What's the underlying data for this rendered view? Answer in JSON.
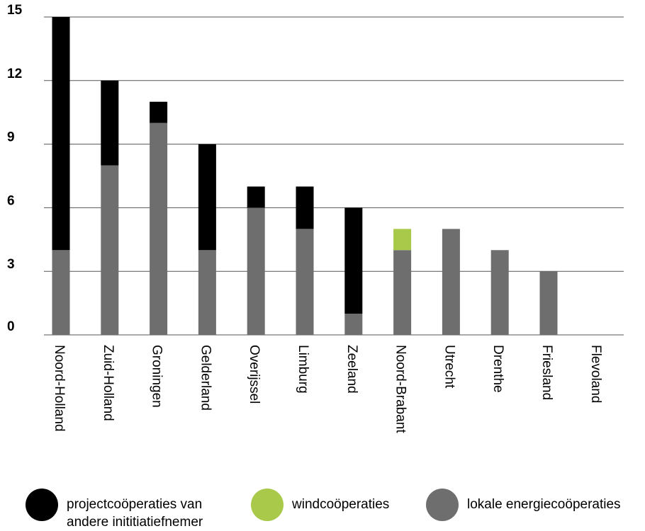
{
  "chart_data": {
    "type": "bar",
    "stacked": true,
    "categories": [
      "Noord-Holland",
      "Zuid-Holland",
      "Groningen",
      "Gelderland",
      "Overijssel",
      "Limburg",
      "Zeeland",
      "Noord-Brabant",
      "Utrecht",
      "Drenthe",
      "Friesland",
      "Flevoland"
    ],
    "series": [
      {
        "name": "lokale energiecoöperaties",
        "color": "#6e6e6e",
        "values": [
          4,
          8,
          10,
          4,
          6,
          5,
          1,
          4,
          5,
          4,
          3,
          0
        ]
      },
      {
        "name": "windcoöperaties",
        "color": "#a8c94a",
        "values": [
          0,
          0,
          0,
          0,
          0,
          0,
          0,
          1,
          0,
          0,
          0,
          0
        ]
      },
      {
        "name": "projectcoöperaties van andere inititiatiefnemer",
        "color": "#000000",
        "values": [
          11,
          4,
          1,
          5,
          1,
          2,
          5,
          0,
          0,
          0,
          0,
          0
        ]
      }
    ],
    "yticks": [
      0,
      3,
      6,
      9,
      12,
      15
    ],
    "ylim": [
      0,
      15
    ],
    "grid": true,
    "legend_position": "bottom"
  },
  "legend": [
    {
      "line1": "projectcoöperaties van",
      "line2": "andere inititiatiefnemer",
      "color": "#000000"
    },
    {
      "line1": "windcoöperaties",
      "line2": "",
      "color": "#a8c94a"
    },
    {
      "line1": "lokale energiecoöperaties",
      "line2": "",
      "color": "#6e6e6e"
    }
  ]
}
